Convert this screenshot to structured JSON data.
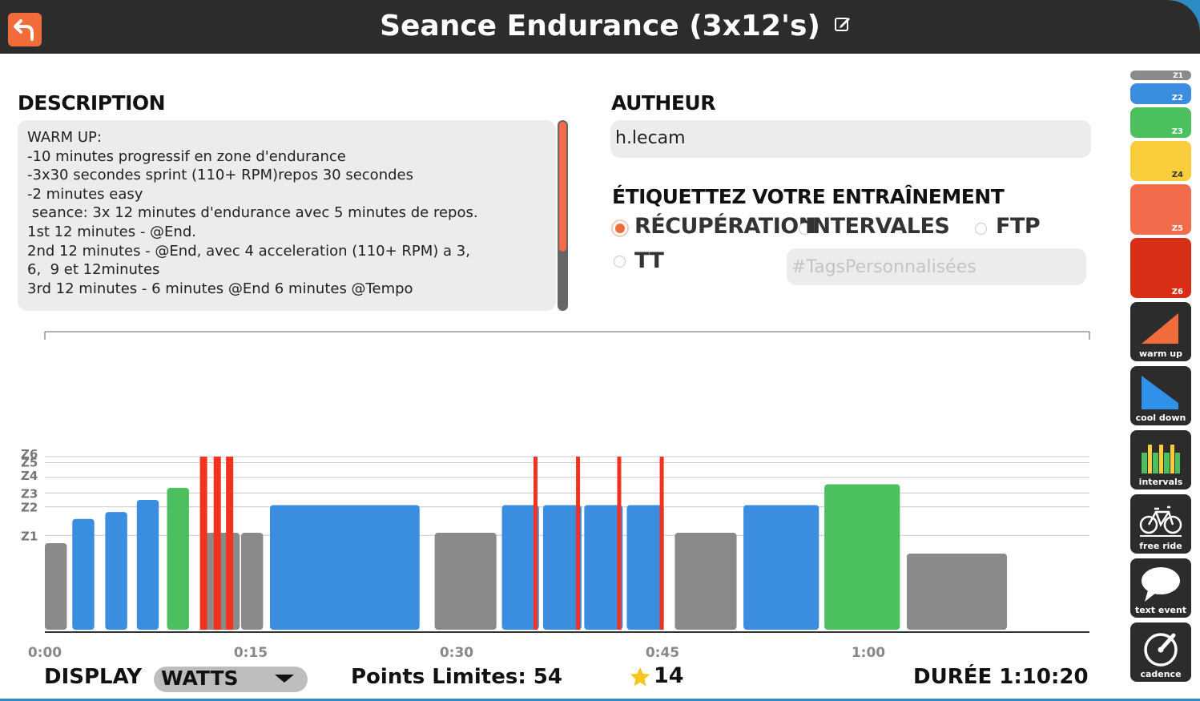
{
  "header": {
    "title": "Seance Endurance (3x12's)"
  },
  "description": {
    "heading": "DESCRIPTION",
    "lines": [
      "WARM UP:",
      "-10 minutes progressif en zone d'endurance",
      "-3x30 secondes sprint (110+ RPM)repos 30 secondes",
      "-2 minutes easy",
      " seance: 3x 12 minutes d'endurance avec 5 minutes de repos.",
      "1st 12 minutes - @End.",
      "2nd 12 minutes - @End, avec 4 acceleration (110+ RPM) a 3,",
      "6,  9 et 12minutes",
      "3rd 12 minutes - 6 minutes @End 6 minutes @Tempo"
    ]
  },
  "author": {
    "heading": "AUTHEUR",
    "value": "h.lecam"
  },
  "tags": {
    "heading": "ÉTIQUETTEZ VOTRE ENTRAÎNEMENT",
    "options": [
      {
        "label": "RÉCUPÉRATION",
        "selected": true
      },
      {
        "label": "INTERVALES",
        "selected": false
      },
      {
        "label": "FTP",
        "selected": false
      },
      {
        "label": "TT",
        "selected": false
      }
    ],
    "custom_placeholder": "#TagsPersonnalisées"
  },
  "footer": {
    "display_label": "DISPLAY",
    "display_value": "WATTS",
    "points_text": "Points Limites: 54",
    "stars": "14",
    "duration_text": "DURÉE 1:10:20"
  },
  "toolbar": {
    "zones": [
      {
        "label": "Z1",
        "color": "#8a8a8a"
      },
      {
        "label": "Z2",
        "color": "#3b8de0"
      },
      {
        "label": "Z3",
        "color": "#4cbf5e"
      },
      {
        "label": "Z4",
        "color": "#f9cd3c"
      },
      {
        "label": "Z5",
        "color": "#f26b4a"
      },
      {
        "label": "Z6",
        "color": "#d92e16"
      }
    ],
    "tools": [
      {
        "label": "warm up",
        "icon": "warm-up-icon"
      },
      {
        "label": "cool down",
        "icon": "cool-down-icon"
      },
      {
        "label": "intervals",
        "icon": "intervals-icon"
      },
      {
        "label": "free ride",
        "icon": "bicycle-icon"
      },
      {
        "label": "text event",
        "icon": "speech-bubble-icon"
      },
      {
        "label": "cadence",
        "icon": "cadence-icon"
      }
    ]
  },
  "chart_data": {
    "type": "bar",
    "y_zone_labels": [
      "Z1",
      "Z2",
      "Z3",
      "Z4",
      "Z5",
      "Z6"
    ],
    "x_tick_labels": [
      "0:00",
      "0:15",
      "0:30",
      "0:45",
      "1:00"
    ],
    "x_range_minutes": [
      0,
      70.33
    ],
    "colors": {
      "Z1": "#8a8a8a",
      "Z2": "#3b8de0",
      "Z3": "#4cbf5e",
      "Z6": "#f0321e"
    },
    "blocks": [
      {
        "start": 0.0,
        "duration": 1.6,
        "zone": "Z1",
        "level": 0.5
      },
      {
        "start": 2.0,
        "duration": 1.6,
        "zone": "Z2",
        "level": 0.64
      },
      {
        "start": 4.4,
        "duration": 1.6,
        "zone": "Z2",
        "level": 0.68
      },
      {
        "start": 6.7,
        "duration": 1.6,
        "zone": "Z2",
        "level": 0.75
      },
      {
        "start": 8.9,
        "duration": 1.6,
        "zone": "Z3",
        "level": 0.82
      },
      {
        "start": 11.7,
        "duration": 2.5,
        "zone": "Z1",
        "level": 0.56
      },
      {
        "start": 14.3,
        "duration": 1.6,
        "zone": "Z1",
        "level": 0.56
      },
      {
        "start": 16.4,
        "duration": 10.9,
        "zone": "Z2",
        "level": 0.72
      },
      {
        "start": 28.4,
        "duration": 4.5,
        "zone": "Z1",
        "level": 0.56
      },
      {
        "start": 33.3,
        "duration": 2.7,
        "zone": "Z2",
        "level": 0.72
      },
      {
        "start": 36.3,
        "duration": 2.8,
        "zone": "Z2",
        "level": 0.72
      },
      {
        "start": 39.3,
        "duration": 2.8,
        "zone": "Z2",
        "level": 0.72
      },
      {
        "start": 42.4,
        "duration": 2.7,
        "zone": "Z2",
        "level": 0.72
      },
      {
        "start": 45.9,
        "duration": 4.5,
        "zone": "Z1",
        "level": 0.56
      },
      {
        "start": 50.9,
        "duration": 5.5,
        "zone": "Z2",
        "level": 0.72
      },
      {
        "start": 56.8,
        "duration": 5.5,
        "zone": "Z3",
        "level": 0.84
      },
      {
        "start": 62.8,
        "duration": 7.3,
        "zone": "Z1",
        "level": 0.44
      }
    ],
    "sprints": [
      {
        "start": 11.3,
        "zone": "Z6"
      },
      {
        "start": 12.3,
        "zone": "Z6"
      },
      {
        "start": 13.2,
        "zone": "Z6"
      },
      {
        "start": 35.6,
        "zone": "Z6"
      },
      {
        "start": 38.7,
        "zone": "Z6"
      },
      {
        "start": 41.7,
        "zone": "Z6"
      },
      {
        "start": 44.8,
        "zone": "Z6"
      }
    ]
  }
}
